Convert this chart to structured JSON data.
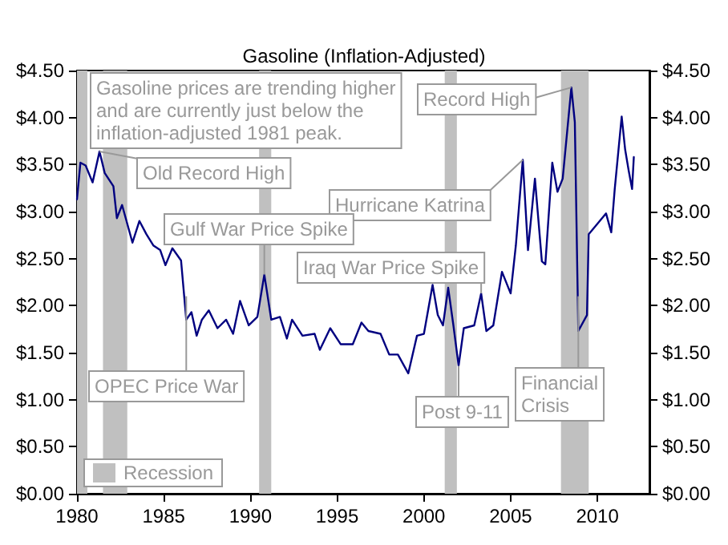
{
  "chart_data": {
    "type": "line",
    "subtitle": "Gasoline (Inflation-Adjusted)",
    "x": [
      1980.0,
      1980.2,
      1980.5,
      1980.9,
      1981.3,
      1981.6,
      1982.1,
      1982.3,
      1982.6,
      1983.2,
      1983.6,
      1984.0,
      1984.4,
      1984.8,
      1985.1,
      1985.5,
      1986.0,
      1986.3,
      1986.6,
      1986.9,
      1987.2,
      1987.6,
      1988.1,
      1988.6,
      1989.0,
      1989.4,
      1989.9,
      1990.4,
      1990.8,
      1991.2,
      1991.7,
      1992.1,
      1992.4,
      1993.0,
      1993.7,
      1994.0,
      1994.6,
      1995.2,
      1995.9,
      1996.4,
      1996.8,
      1997.5,
      1998.0,
      1998.5,
      1999.1,
      1999.6,
      2000.0,
      2000.5,
      2000.8,
      2001.1,
      2001.4,
      2001.7,
      2002.0,
      2002.3,
      2002.9,
      2003.3,
      2003.6,
      2004.0,
      2004.5,
      2005.0,
      2005.3,
      2005.7,
      2006.0,
      2006.4,
      2006.8,
      2007.0,
      2007.4,
      2007.7,
      2008.0,
      2008.5,
      2008.7,
      2008.9,
      2009.4,
      2009.5,
      2010.0,
      2010.5,
      2010.8,
      2011.0,
      2011.4,
      2011.6,
      2011.8,
      2012.0,
      2012.1
    ],
    "series": [
      {
        "color": "#000080",
        "values": [
          3.13,
          3.52,
          3.49,
          3.31,
          3.64,
          3.41,
          3.27,
          2.93,
          3.07,
          2.67,
          2.9,
          2.76,
          2.64,
          2.59,
          2.43,
          2.61,
          2.48,
          1.85,
          1.93,
          1.68,
          1.85,
          1.95,
          1.76,
          1.85,
          1.7,
          2.05,
          1.79,
          1.88,
          2.33,
          1.85,
          1.88,
          1.65,
          1.85,
          1.68,
          1.7,
          1.53,
          1.76,
          1.59,
          1.59,
          1.82,
          1.73,
          1.7,
          1.48,
          1.48,
          1.28,
          1.68,
          1.7,
          2.22,
          1.9,
          1.79,
          2.19,
          1.79,
          1.36,
          1.76,
          1.79,
          2.13,
          1.73,
          1.79,
          2.36,
          2.13,
          2.64,
          3.55,
          2.59,
          3.35,
          2.47,
          2.44,
          3.52,
          3.21,
          3.35,
          4.32,
          3.95,
          1.73,
          1.9,
          2.76,
          2.87,
          2.98,
          2.78,
          3.24,
          4.01,
          3.66,
          3.44,
          3.24,
          3.58
        ]
      }
    ],
    "xlim": [
      1980,
      2013
    ],
    "xticks": [
      1980,
      1985,
      1990,
      1995,
      2000,
      2005,
      2010
    ],
    "ylim": [
      0,
      4.5
    ],
    "yticks": [
      {
        "value": 0,
        "label": "$0.00"
      },
      {
        "value": 0.5,
        "label": "$0.50"
      },
      {
        "value": 1,
        "label": "$1.00"
      },
      {
        "value": 1.5,
        "label": "$1.50"
      },
      {
        "value": 2,
        "label": "$2.00"
      },
      {
        "value": 2.5,
        "label": "$2.50"
      },
      {
        "value": 3,
        "label": "$3.00"
      },
      {
        "value": 3.5,
        "label": "$3.50"
      },
      {
        "value": 4,
        "label": "$4.00"
      },
      {
        "value": 4.5,
        "label": "$4.50"
      }
    ],
    "y2lim": [
      0,
      4.5
    ],
    "y2ticks": [
      {
        "value": 0,
        "label": "$0.00"
      },
      {
        "value": 0.5,
        "label": "$0.50"
      },
      {
        "value": 1,
        "label": "$1.00"
      },
      {
        "value": 1.5,
        "label": "$1.50"
      },
      {
        "value": 2,
        "label": "$2.00"
      },
      {
        "value": 2.5,
        "label": "$2.50"
      },
      {
        "value": 3,
        "label": "$3.00"
      },
      {
        "value": 3.5,
        "label": "$3.50"
      },
      {
        "value": 4,
        "label": "$4.00"
      },
      {
        "value": 4.5,
        "label": "$4.50"
      }
    ],
    "bands": [
      {
        "axis": "x",
        "from": 1980.0,
        "to": 1980.6,
        "label": "Recession",
        "color": "#c0c0c0"
      },
      {
        "axis": "x",
        "from": 1981.5,
        "to": 1982.9,
        "color": "#c0c0c0"
      },
      {
        "axis": "x",
        "from": 1990.5,
        "to": 1991.2,
        "color": "#c0c0c0"
      },
      {
        "axis": "x",
        "from": 2001.2,
        "to": 2001.9,
        "color": "#c0c0c0"
      },
      {
        "axis": "x",
        "from": 2007.9,
        "to": 2009.5,
        "color": "#c0c0c0"
      }
    ],
    "annotations": [
      "Gasoline prices are trending higher\nand are currently just below the\ninflation-adjusted 1981 peak.",
      {
        "text": "Old Record High",
        "x": 1981.3,
        "y": 3.64
      },
      {
        "text": "Hurricane Katrina",
        "x": 2005.7,
        "y": 3.55
      },
      {
        "text": "Gulf War Price Spike",
        "x": 1990.8,
        "y": 2.33
      },
      {
        "text": "Iraq War Price Spike",
        "x": 2003.3,
        "y": 2.13
      },
      {
        "text": "Record High",
        "x": 2008.5,
        "y": 4.32
      },
      {
        "text": "OPEC Price War",
        "x": 1986.3,
        "y": 2.1
      },
      {
        "text": "Post 9-11",
        "x": 2002.0,
        "y": 1.36
      },
      {
        "text": "Financial\nCrisis",
        "x": 2008.9,
        "y": 2.1
      }
    ],
    "legend": "bottom left",
    "grid": false,
    "marker": "none",
    "line_style": "solid"
  }
}
